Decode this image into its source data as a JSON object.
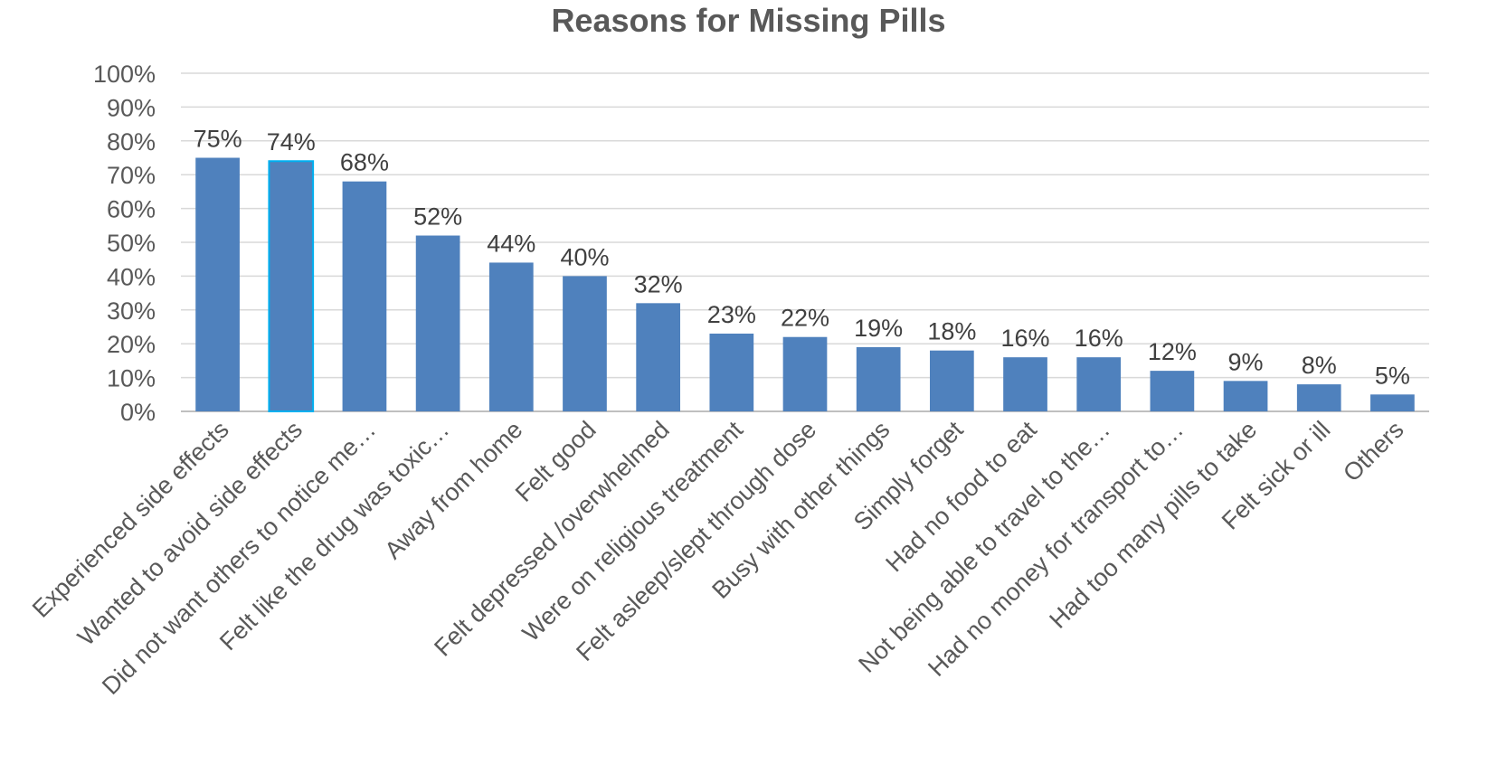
{
  "chart_data": {
    "type": "bar",
    "title": "Reasons for Missing Pills",
    "xlabel": "",
    "ylabel": "",
    "ylim": [
      0,
      100
    ],
    "y_ticks": [
      "0%",
      "10%",
      "20%",
      "30%",
      "40%",
      "50%",
      "60%",
      "70%",
      "80%",
      "90%",
      "100%"
    ],
    "y_tick_values": [
      0,
      10,
      20,
      30,
      40,
      50,
      60,
      70,
      80,
      90,
      100
    ],
    "grid": true,
    "legend": "none",
    "bar_color": "#4f81bd",
    "highlight_outline_color": "#00b0f0",
    "categories": [
      "Experienced side effects",
      "Wanted to avoid side effects",
      "Did not want others to notice me…",
      "Felt like the drug was toxic…",
      "Away from home",
      "Felt good",
      "Felt depressed /overwhelmed",
      "Were on religious treatment",
      "Felt asleep/slept through dose",
      "Busy with other things",
      "Simply forget",
      "Had no food to eat",
      "Not being able to travel to the…",
      "Had no money for transport to…",
      "Had too many pills to take",
      "Felt sick or ill",
      "Others"
    ],
    "values": [
      75,
      74,
      68,
      52,
      44,
      40,
      32,
      23,
      22,
      19,
      18,
      16,
      16,
      12,
      9,
      8,
      5
    ],
    "value_labels": [
      "75%",
      "74%",
      "68%",
      "52%",
      "44%",
      "40%",
      "32%",
      "23%",
      "22%",
      "19%",
      "18%",
      "16%",
      "16%",
      "12%",
      "9%",
      "8%",
      "5%"
    ]
  }
}
